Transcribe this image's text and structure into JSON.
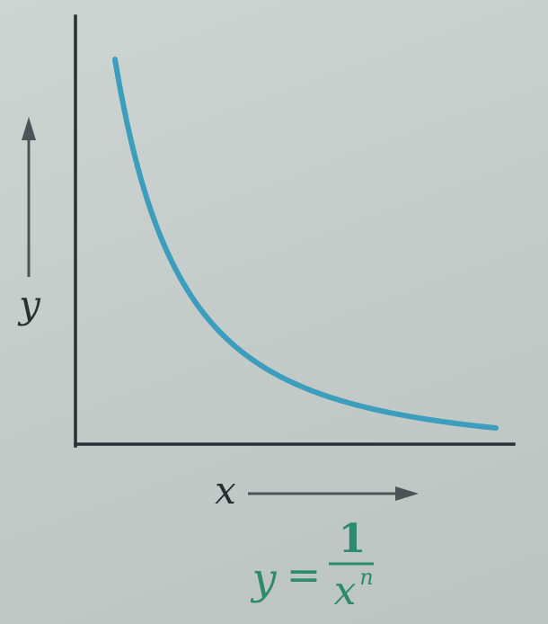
{
  "chart_data": {
    "type": "line",
    "title": "",
    "xlabel": "x",
    "ylabel": "y",
    "grid": false,
    "series": [
      {
        "function": "y = 1/x^n",
        "color": "#3d9dbd"
      }
    ],
    "formula": {
      "lhs": "y",
      "equals": "=",
      "numerator": "1",
      "denominator_base": "x",
      "denominator_exponent": "n"
    }
  },
  "colors": {
    "curve": "#3d9dbd",
    "axes": "#2a2f33",
    "arrows": "#4d5459",
    "formula": "#2e8a6e"
  }
}
